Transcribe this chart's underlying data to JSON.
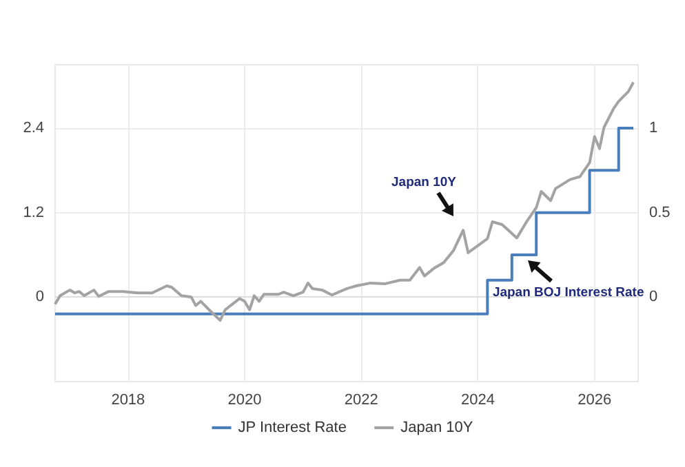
{
  "chart_data": {
    "type": "line",
    "xlim": [
      "2016-10",
      "2026-10"
    ],
    "xticks": [
      "2018",
      "2020",
      "2022",
      "2024",
      "2026"
    ],
    "ylim": [
      -1.2,
      3.3
    ],
    "yticks": [
      0,
      1.2,
      2.4
    ],
    "y2lim": [
      -0.5,
      1.375
    ],
    "y2ticks": [
      0,
      0.5,
      1
    ],
    "grid": true,
    "legend": "bottom",
    "marker": "none",
    "series": [
      {
        "name": "JP Interest Rate",
        "type": "step",
        "axis": "y2",
        "color": "#4a7ebb",
        "x": [
          "2016-10",
          "2024-03",
          "2024-08",
          "2025-01",
          "2025-12",
          "2026-06",
          "2026-09"
        ],
        "values": [
          -0.1,
          0.1,
          0.25,
          0.5,
          0.75,
          1,
          1
        ]
      },
      {
        "name": "Japan 10Y",
        "type": "line",
        "color": "#a3a3a3",
        "x": [
          "2016-10",
          "2016-11",
          "2017-01",
          "2017-02",
          "2017-03",
          "2017-04",
          "2017-06",
          "2017-07",
          "2017-09",
          "2017-12",
          "2018-03",
          "2018-06",
          "2018-09",
          "2018-10",
          "2018-12",
          "2019-02",
          "2019-03",
          "2019-04",
          "2019-06",
          "2019-08",
          "2019-09",
          "2019-12",
          "2020-01",
          "2020-02",
          "2020-03",
          "2020-04",
          "2020-05",
          "2020-08",
          "2020-09",
          "2020-11",
          "2021-01",
          "2021-02",
          "2021-03",
          "2021-05",
          "2021-07",
          "2021-10",
          "2021-12",
          "2022-03",
          "2022-06",
          "2022-09",
          "2022-11",
          "2023-01",
          "2023-02",
          "2023-04",
          "2023-06",
          "2023-08",
          "2023-10",
          "2023-11",
          "2024-01",
          "2024-03",
          "2024-04",
          "2024-06",
          "2024-09",
          "2024-11",
          "2025-01",
          "2025-02",
          "2025-04",
          "2025-05",
          "2025-08",
          "2025-10",
          "2025-12",
          "2026-01",
          "2026-02",
          "2026-03",
          "2026-05",
          "2026-06",
          "2026-08",
          "2026-09"
        ],
        "values": [
          -0.1,
          0.02,
          0.1,
          0.06,
          0.08,
          0.02,
          0.1,
          0.01,
          0.08,
          0.08,
          0.06,
          0.06,
          0.16,
          0.14,
          0.02,
          0.0,
          -0.12,
          -0.06,
          -0.2,
          -0.33,
          -0.18,
          -0.02,
          -0.06,
          -0.18,
          0.02,
          -0.06,
          0.04,
          0.04,
          0.07,
          0.02,
          0.07,
          0.2,
          0.12,
          0.1,
          0.03,
          0.12,
          0.16,
          0.2,
          0.19,
          0.24,
          0.24,
          0.42,
          0.3,
          0.41,
          0.49,
          0.66,
          0.95,
          0.63,
          0.73,
          0.83,
          1.07,
          1.03,
          0.84,
          1.07,
          1.27,
          1.5,
          1.37,
          1.54,
          1.67,
          1.71,
          1.91,
          2.28,
          2.11,
          2.41,
          2.68,
          2.78,
          2.92,
          3.05
        ]
      }
    ],
    "annotations": [
      "Japan 10Y",
      {
        "text": "Japan BOJ Interest Rate",
        "x": "2024-10",
        "y": 0.6
      }
    ]
  }
}
